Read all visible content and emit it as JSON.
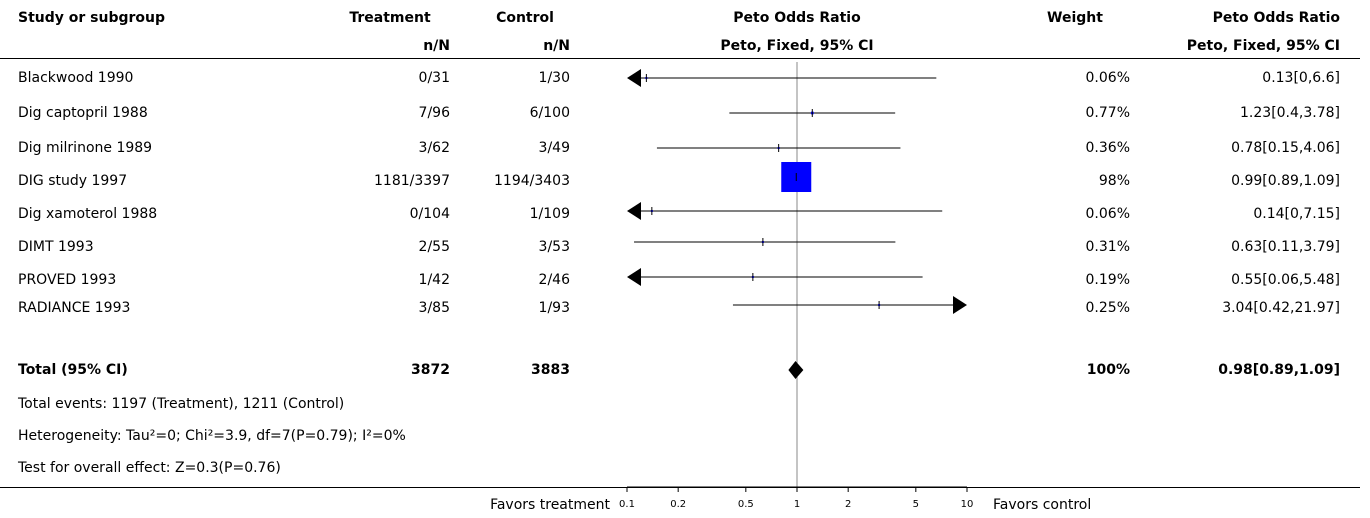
{
  "header": {
    "study_label": "Study or subgroup",
    "treatment_label": "Treatment",
    "treatment_sub": "n/N",
    "control_label": "Control",
    "control_sub": "n/N",
    "plot_label": "Peto Odds Ratio",
    "plot_sub": "Peto, Fixed, 95% CI",
    "weight_label": "Weight",
    "effect_label": "Peto Odds Ratio",
    "effect_sub": "Peto, Fixed, 95% CI"
  },
  "rows": [
    {
      "study": "Blackwood 1990",
      "treatment": "0/31",
      "control": "1/30",
      "weight": "0.06%",
      "ci_text": "0.13[0,6.6]"
    },
    {
      "study": "Dig captopril 1988",
      "treatment": "7/96",
      "control": "6/100",
      "weight": "0.77%",
      "ci_text": "1.23[0.4,3.78]"
    },
    {
      "study": "Dig milrinone 1989",
      "treatment": "3/62",
      "control": "3/49",
      "weight": "0.36%",
      "ci_text": "0.78[0.15,4.06]"
    },
    {
      "study": "DIG study 1997",
      "treatment": "1181/3397",
      "control": "1194/3403",
      "weight": "98%",
      "ci_text": "0.99[0.89,1.09]"
    },
    {
      "study": "Dig xamoterol 1988",
      "treatment": "0/104",
      "control": "1/109",
      "weight": "0.06%",
      "ci_text": "0.14[0,7.15]"
    },
    {
      "study": "DIMT 1993",
      "treatment": "2/55",
      "control": "3/53",
      "weight": "0.31%",
      "ci_text": "0.63[0.11,3.79]"
    },
    {
      "study": "PROVED 1993",
      "treatment": "1/42",
      "control": "2/46",
      "weight": "0.19%",
      "ci_text": "0.55[0.06,5.48]"
    },
    {
      "study": "RADIANCE 1993",
      "treatment": "3/85",
      "control": "1/93",
      "weight": "0.25%",
      "ci_text": "3.04[0.42,21.97]"
    }
  ],
  "total": {
    "label": "Total (95% CI)",
    "treatment": "3872",
    "control": "3883",
    "weight": "100%",
    "ci_text": "0.98[0.89,1.09]"
  },
  "notes": [
    "Total events: 1197 (Treatment), 1211 (Control)",
    "Heterogeneity: Tau²=0; Chi²=3.9, df=7(P=0.79); I²=0%",
    "Test for overall effect: Z=0.3(P=0.76)"
  ],
  "footer": {
    "favors_left": "Favors treatment",
    "favors_right": "Favors control"
  },
  "chart_data": {
    "type": "forest",
    "scale": "log",
    "xlim": [
      0.1,
      10
    ],
    "ticks": [
      0.1,
      0.2,
      0.5,
      1,
      2,
      5,
      10
    ],
    "tick_labels": [
      "0.1",
      "0.2",
      "0.5",
      "1",
      "2",
      "5",
      "10"
    ],
    "reference_line": 1,
    "studies": [
      {
        "name": "Blackwood 1990",
        "or": 0.13,
        "lo": 0,
        "hi": 6.6,
        "weight": 0.06
      },
      {
        "name": "Dig captopril 1988",
        "or": 1.23,
        "lo": 0.4,
        "hi": 3.78,
        "weight": 0.77
      },
      {
        "name": "Dig milrinone 1989",
        "or": 0.78,
        "lo": 0.15,
        "hi": 4.06,
        "weight": 0.36
      },
      {
        "name": "DIG study 1997",
        "or": 0.99,
        "lo": 0.89,
        "hi": 1.09,
        "weight": 98
      },
      {
        "name": "Dig xamoterol 1988",
        "or": 0.14,
        "lo": 0,
        "hi": 7.15,
        "weight": 0.06
      },
      {
        "name": "DIMT 1993",
        "or": 0.63,
        "lo": 0.11,
        "hi": 3.79,
        "weight": 0.31
      },
      {
        "name": "PROVED 1993",
        "or": 0.55,
        "lo": 0.06,
        "hi": 5.48,
        "weight": 0.19
      },
      {
        "name": "RADIANCE 1993",
        "or": 3.04,
        "lo": 0.42,
        "hi": 21.97,
        "weight": 0.25
      }
    ],
    "pooled": {
      "or": 0.98,
      "lo": 0.89,
      "hi": 1.09
    },
    "marker_color": "#0000ff"
  }
}
